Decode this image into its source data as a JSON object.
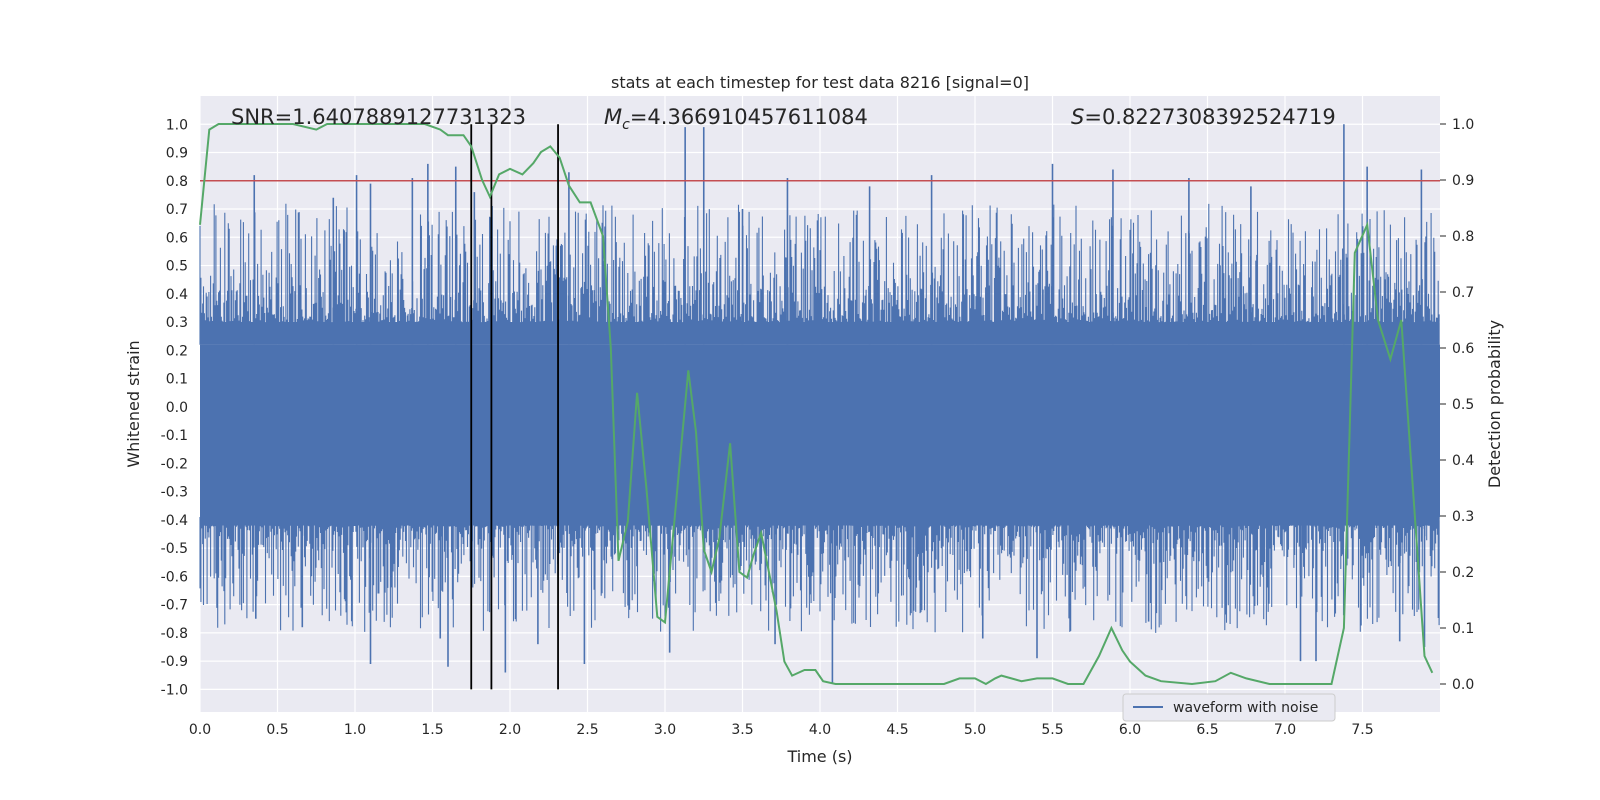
{
  "chart_data": {
    "type": "line",
    "title": "stats at each timestep for test data 8216 [signal=0]",
    "xlabel": "Time (s)",
    "ylabel": "Whitened strain",
    "y2label": "Detection probability",
    "xlim": [
      0.0,
      8.0
    ],
    "ylim": [
      -1.08,
      1.1
    ],
    "y2lim": [
      -0.05,
      1.05
    ],
    "xticks": [
      "0.0",
      "0.5",
      "1.0",
      "1.5",
      "2.0",
      "2.5",
      "3.0",
      "3.5",
      "4.0",
      "4.5",
      "5.0",
      "5.5",
      "6.0",
      "6.5",
      "7.0",
      "7.5"
    ],
    "yticks": [
      "1.0",
      "0.9",
      "0.8",
      "0.7",
      "0.6",
      "0.5",
      "0.4",
      "0.3",
      "0.2",
      "0.1",
      "0.0",
      "-0.1",
      "-0.2",
      "-0.3",
      "-0.4",
      "-0.5",
      "-0.6",
      "-0.7",
      "-0.8",
      "-0.9",
      "-1.0"
    ],
    "y2ticks": [
      "1.0",
      "0.9",
      "0.8",
      "0.7",
      "0.6",
      "0.5",
      "0.4",
      "0.3",
      "0.2",
      "0.1",
      "0.0"
    ],
    "grid": true,
    "legend": {
      "placement": "lower-right",
      "entries": [
        "waveform with noise"
      ]
    },
    "annotations": {
      "snr": "SNR=1.6407889127731323",
      "mc_symbol": "M",
      "mc_sub": "c",
      "mc_value": "=4.366910457611084",
      "s_symbol": "S",
      "s_value": "=0.8227308392524719"
    },
    "threshold": {
      "y": 0.8,
      "color": "#c44e52"
    },
    "vlines": [
      1.75,
      1.88,
      2.31
    ],
    "waveform": {
      "name": "waveform with noise",
      "color": "#4c72b0",
      "core_upper": 0.22,
      "core_lower": -0.39,
      "spike_range": [
        0.0,
        8.0
      ],
      "spikes_high": [
        [
          0.35,
          0.82
        ],
        [
          0.86,
          0.74
        ],
        [
          1.01,
          0.82
        ],
        [
          1.1,
          0.79
        ],
        [
          1.37,
          0.81
        ],
        [
          1.47,
          0.86
        ],
        [
          1.65,
          0.85
        ],
        [
          1.77,
          0.76
        ],
        [
          2.38,
          0.83
        ],
        [
          3.13,
          0.99
        ],
        [
          3.25,
          0.99
        ],
        [
          3.5,
          0.7
        ],
        [
          3.79,
          0.81
        ],
        [
          4.32,
          0.78
        ],
        [
          4.72,
          0.82
        ],
        [
          5.5,
          0.86
        ],
        [
          5.89,
          0.84
        ],
        [
          6.38,
          0.81
        ],
        [
          6.78,
          0.78
        ],
        [
          7.38,
          1.0
        ],
        [
          7.53,
          0.85
        ],
        [
          7.88,
          0.84
        ]
      ],
      "spikes_low": [
        [
          0.36,
          -0.75
        ],
        [
          0.66,
          -0.78
        ],
        [
          1.1,
          -0.91
        ],
        [
          1.55,
          -0.82
        ],
        [
          1.6,
          -0.92
        ],
        [
          1.97,
          -0.94
        ],
        [
          2.18,
          -0.84
        ],
        [
          2.48,
          -0.91
        ],
        [
          3.03,
          -0.87
        ],
        [
          3.71,
          -0.84
        ],
        [
          4.08,
          -0.98
        ],
        [
          5.05,
          -0.82
        ],
        [
          5.4,
          -0.89
        ],
        [
          6.12,
          -0.76
        ],
        [
          7.1,
          -0.9
        ],
        [
          7.2,
          -0.9
        ],
        [
          7.74,
          -0.83
        ],
        [
          7.9,
          -0.85
        ]
      ]
    },
    "probability": {
      "name": "detection probability",
      "color": "#55a868",
      "x": [
        0.0,
        0.06,
        0.12,
        0.3,
        0.6,
        0.75,
        0.82,
        0.95,
        1.2,
        1.45,
        1.55,
        1.6,
        1.7,
        1.75,
        1.82,
        1.87,
        1.93,
        2.0,
        2.08,
        2.15,
        2.2,
        2.26,
        2.32,
        2.38,
        2.45,
        2.52,
        2.6,
        2.65,
        2.7,
        2.76,
        2.82,
        2.88,
        2.95,
        3.0,
        3.05,
        3.1,
        3.15,
        3.2,
        3.25,
        3.3,
        3.35,
        3.42,
        3.48,
        3.53,
        3.57,
        3.62,
        3.67,
        3.72,
        3.77,
        3.82,
        3.9,
        3.97,
        4.02,
        4.1,
        4.2,
        4.3,
        4.5,
        4.7,
        4.8,
        4.9,
        5.0,
        5.07,
        5.13,
        5.17,
        5.3,
        5.4,
        5.5,
        5.6,
        5.7,
        5.8,
        5.88,
        5.95,
        6.0,
        6.1,
        6.2,
        6.4,
        6.55,
        6.65,
        6.75,
        6.9,
        7.0,
        7.15,
        7.25,
        7.3,
        7.38,
        7.45,
        7.53,
        7.6,
        7.68,
        7.75,
        7.8,
        7.85,
        7.9,
        7.95
      ],
      "y": [
        0.82,
        0.99,
        1.0,
        1.0,
        1.0,
        0.99,
        1.0,
        1.0,
        1.0,
        1.0,
        0.99,
        0.98,
        0.98,
        0.96,
        0.9,
        0.87,
        0.91,
        0.92,
        0.91,
        0.93,
        0.95,
        0.96,
        0.94,
        0.89,
        0.86,
        0.86,
        0.8,
        0.6,
        0.22,
        0.29,
        0.52,
        0.35,
        0.12,
        0.11,
        0.26,
        0.41,
        0.56,
        0.45,
        0.24,
        0.2,
        0.26,
        0.43,
        0.2,
        0.19,
        0.23,
        0.27,
        0.2,
        0.13,
        0.04,
        0.015,
        0.025,
        0.025,
        0.005,
        0.0,
        0.0,
        0.0,
        0.0,
        0.0,
        0.0,
        0.01,
        0.01,
        0.0,
        0.01,
        0.015,
        0.005,
        0.01,
        0.01,
        0.0,
        0.0,
        0.05,
        0.1,
        0.06,
        0.04,
        0.015,
        0.005,
        0.0,
        0.005,
        0.02,
        0.01,
        0.0,
        0.0,
        0.0,
        0.0,
        0.0,
        0.1,
        0.77,
        0.82,
        0.65,
        0.58,
        0.65,
        0.45,
        0.25,
        0.05,
        0.02
      ]
    }
  }
}
